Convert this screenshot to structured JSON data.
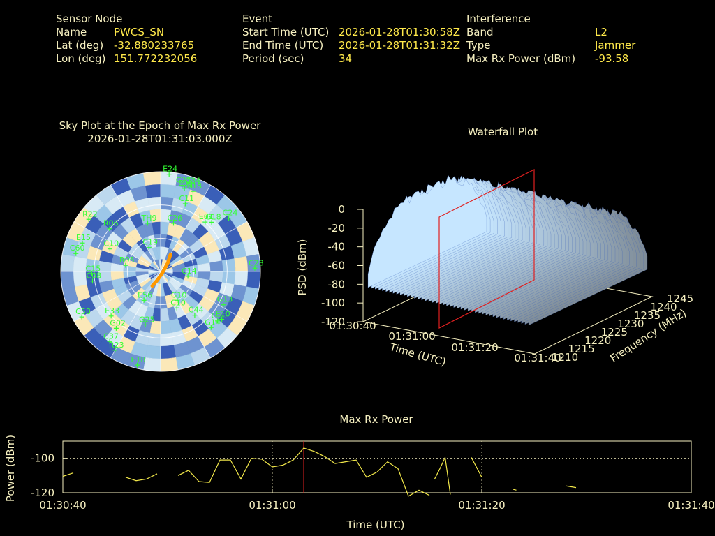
{
  "header": {
    "sensor": {
      "heading": "Sensor Node",
      "rows": [
        {
          "label": "Name",
          "value": "PWCS_SN"
        },
        {
          "label": "Lat (deg)",
          "value": "-32.880233765"
        },
        {
          "label": "Lon (deg)",
          "value": "151.772232056"
        }
      ]
    },
    "event": {
      "heading": "Event",
      "rows": [
        {
          "label": "Start Time (UTC)",
          "value": "2026-01-28T01:30:58Z"
        },
        {
          "label": "End Time (UTC)",
          "value": "2026-01-28T01:31:32Z"
        },
        {
          "label": "Period (sec)",
          "value": "34"
        }
      ]
    },
    "interference": {
      "heading": "Interference",
      "rows": [
        {
          "label": "Band",
          "value": "L2"
        },
        {
          "label": "Type",
          "value": "Jammer"
        },
        {
          "label": "Max Rx Power (dBm)",
          "value": "-93.58"
        }
      ]
    }
  },
  "colors": {
    "label": "#f6f0c0",
    "value": "#ffe94a",
    "satellite": "#33ff33",
    "track": "#ff9900",
    "cursor": "#e02020",
    "sky_dark": "#3a5fb8",
    "sky_mid": "#9cc7e8",
    "sky_light": "#fbe8b8",
    "waterfall": "#9ec8e6"
  },
  "skyplot": {
    "title": "Sky Plot at the Epoch of Max Rx Power",
    "subtitle": "2026-01-28T01:31:03.000Z",
    "satellites": [
      {
        "id": "E24",
        "az": 5,
        "el": 2
      },
      {
        "id": "C34",
        "az": 20,
        "el": 8
      },
      {
        "id": "C23",
        "az": 14,
        "el": 10
      },
      {
        "id": "E09",
        "az": 16,
        "el": 12
      },
      {
        "id": "R18",
        "az": 22,
        "el": 12
      },
      {
        "id": "C11",
        "az": 20,
        "el": 25
      },
      {
        "id": "E01",
        "az": 42,
        "el": 30
      },
      {
        "id": "G18",
        "az": 46,
        "el": 26
      },
      {
        "id": "C24",
        "az": 52,
        "el": 12
      },
      {
        "id": "C28",
        "az": 88,
        "el": 5
      },
      {
        "id": "G13",
        "az": 118,
        "el": 26
      },
      {
        "id": "E10",
        "az": 128,
        "el": 20
      },
      {
        "id": "G30",
        "az": 131,
        "el": 22
      },
      {
        "id": "G14",
        "az": 138,
        "el": 22
      },
      {
        "id": "C44",
        "az": 142,
        "el": 40
      },
      {
        "id": "C10",
        "az": 156,
        "el": 54
      },
      {
        "id": "E18",
        "az": 194,
        "el": 3
      },
      {
        "id": "G25",
        "az": 196,
        "el": 40
      },
      {
        "id": "R23",
        "az": 210,
        "el": 8
      },
      {
        "id": "C37",
        "az": 216,
        "el": 12
      },
      {
        "id": "G02",
        "az": 218,
        "el": 25
      },
      {
        "id": "E33",
        "az": 228,
        "el": 30
      },
      {
        "id": "C58",
        "az": 240,
        "el": 8
      },
      {
        "id": "C15",
        "az": 268,
        "el": 28
      },
      {
        "id": "C08",
        "az": 262,
        "el": 28
      },
      {
        "id": "R06",
        "az": 310,
        "el": 30
      },
      {
        "id": "R22",
        "az": 306,
        "el": 10
      },
      {
        "id": "E15",
        "az": 290,
        "el": 15
      },
      {
        "id": "C60",
        "az": 282,
        "el": 12
      },
      {
        "id": "C10",
        "az": 294,
        "el": 40
      },
      {
        "id": "R05",
        "az": 280,
        "el": 58
      },
      {
        "id": "C19",
        "az": 334,
        "el": 66
      },
      {
        "id": "TH9",
        "az": 345,
        "el": 45
      },
      {
        "id": "C14",
        "az": 100,
        "el": 65
      },
      {
        "id": "G10",
        "az": 150,
        "el": 60
      },
      {
        "id": "E56",
        "az": 210,
        "el": 60
      },
      {
        "id": "C26",
        "az": 15,
        "el": 45
      }
    ],
    "track": [
      {
        "az": 210,
        "el": 75
      },
      {
        "az": 200,
        "el": 82
      },
      {
        "az": 120,
        "el": 88
      },
      {
        "az": 40,
        "el": 80
      },
      {
        "az": 30,
        "el": 72
      }
    ]
  },
  "waterfall": {
    "title": "Waterfall Plot",
    "zlabel": "PSD (dBm)",
    "xlabel": "Time (UTC)",
    "ylabel": "Frequency (MHz)",
    "z_ticks": [
      "0",
      "-20",
      "-40",
      "-60",
      "-80",
      "-100",
      "-120"
    ],
    "x_ticks": [
      "01:30:40",
      "01:31:00",
      "01:31:20",
      "01:31:40"
    ],
    "y_ticks": [
      "1210",
      "1215",
      "1220",
      "1225",
      "1230",
      "1235",
      "1240",
      "1245"
    ]
  },
  "chart_data": {
    "type": "line",
    "title": "Max Rx Power",
    "xlabel": "Time (UTC)",
    "ylabel": "Power (dBm)",
    "x_ticks": [
      "01:30:40",
      "01:31:00",
      "01:31:20",
      "01:31:40"
    ],
    "y_ticks": [
      "-100",
      "-120"
    ],
    "xlim": [
      0,
      60
    ],
    "ylim": [
      -120,
      -90
    ],
    "grid": true,
    "cursor_x": 23,
    "series": [
      {
        "values": [
          [
            0,
            -110.5
          ],
          [
            1,
            -108.5
          ]
        ]
      },
      {
        "values": [
          [
            6,
            -111
          ],
          [
            7,
            -113
          ],
          [
            8,
            -112
          ],
          [
            9,
            -109
          ]
        ]
      },
      {
        "values": [
          [
            11,
            -110
          ],
          [
            12,
            -107
          ],
          [
            13,
            -113.5
          ],
          [
            14,
            -114
          ],
          [
            15,
            -101
          ],
          [
            16,
            -101
          ],
          [
            17,
            -112
          ],
          [
            18,
            -100
          ],
          [
            19,
            -100.5
          ],
          [
            20,
            -105
          ],
          [
            21,
            -104
          ],
          [
            22,
            -101
          ],
          [
            23,
            -94
          ],
          [
            24,
            -96
          ],
          [
            25,
            -99
          ],
          [
            26,
            -103
          ],
          [
            27,
            -102
          ],
          [
            28,
            -101
          ],
          [
            29,
            -111
          ],
          [
            30,
            -108
          ],
          [
            31,
            -102
          ],
          [
            32,
            -106
          ],
          [
            33,
            -122
          ],
          [
            34,
            -118.5
          ],
          [
            35,
            -121.5
          ]
        ]
      },
      {
        "values": [
          [
            35.5,
            -112
          ],
          [
            36,
            -106
          ],
          [
            36.5,
            -99.5
          ],
          [
            37,
            -121
          ]
        ]
      },
      {
        "values": [
          [
            39,
            -99.5
          ],
          [
            40,
            -111
          ]
        ]
      },
      {
        "values": [
          [
            43,
            -118
          ],
          [
            43.3,
            -118.5
          ]
        ]
      },
      {
        "values": [
          [
            48,
            -116
          ],
          [
            49,
            -117
          ]
        ]
      }
    ]
  }
}
